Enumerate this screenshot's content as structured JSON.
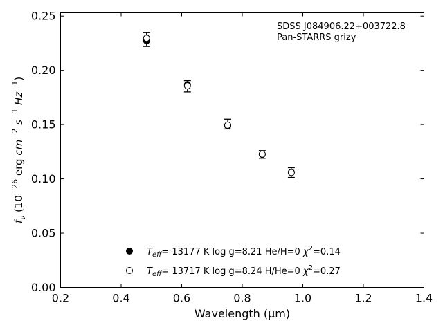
{
  "chart_data": {
    "type": "scatter",
    "annotation_lines": [
      "SDSS J084906.22+003722.8",
      "Pan-STARRS grizy"
    ],
    "xlabel": "Wavelength (μm)",
    "ylabel": "fν (10⁻²⁶ erg cm⁻² s⁻¹ Hz⁻¹)",
    "xlim": [
      0.2,
      1.4
    ],
    "ylim": [
      0.0,
      0.253
    ],
    "xticks": [
      "0.2",
      "0.4",
      "0.6",
      "0.8",
      "1.0",
      "1.2",
      "1.4"
    ],
    "yticks": [
      "0.00",
      "0.05",
      "0.10",
      "0.15",
      "0.20",
      "0.25"
    ],
    "xtick_values": [
      0.2,
      0.4,
      0.6,
      0.8,
      1.0,
      1.2,
      1.4
    ],
    "ytick_values": [
      0.0,
      0.05,
      0.1,
      0.15,
      0.2,
      0.25
    ],
    "grid": false,
    "observed": {
      "x": [
        0.484,
        0.619,
        0.752,
        0.866,
        0.962
      ],
      "y": [
        0.2285,
        0.1853,
        0.1505,
        0.1225,
        0.1058
      ],
      "err": [
        0.0065,
        0.0052,
        0.0045,
        0.0035,
        0.0045
      ]
    },
    "series": [
      {
        "legend": "T_eff= 13177 K  log g=8.21  He/H=0  χ²=0.14",
        "marker": "filled-circle",
        "color": "#000000",
        "x": [
          0.484,
          0.619,
          0.752,
          0.866,
          0.962
        ],
        "y": [
          0.2272,
          0.1868,
          0.1489,
          0.1225,
          0.1062
        ]
      },
      {
        "legend": "T_eff= 13717 K  log g=8.24  H/He=0  χ²=0.27",
        "marker": "open-circle",
        "color": "#000000",
        "x": [
          0.484,
          0.619,
          0.752,
          0.866,
          0.962
        ],
        "y": [
          0.2296,
          0.1857,
          0.1495,
          0.1228,
          0.1058
        ]
      }
    ],
    "legend_entries": [
      {
        "marker": "filled-circle",
        "teff": "13177",
        "logg": "8.21",
        "comp": "He/H=0",
        "chi2": "0.14"
      },
      {
        "marker": "open-circle",
        "teff": "13717",
        "logg": "8.24",
        "comp": "H/He=0",
        "chi2": "0.27"
      }
    ],
    "legend_location": "lower-center"
  }
}
